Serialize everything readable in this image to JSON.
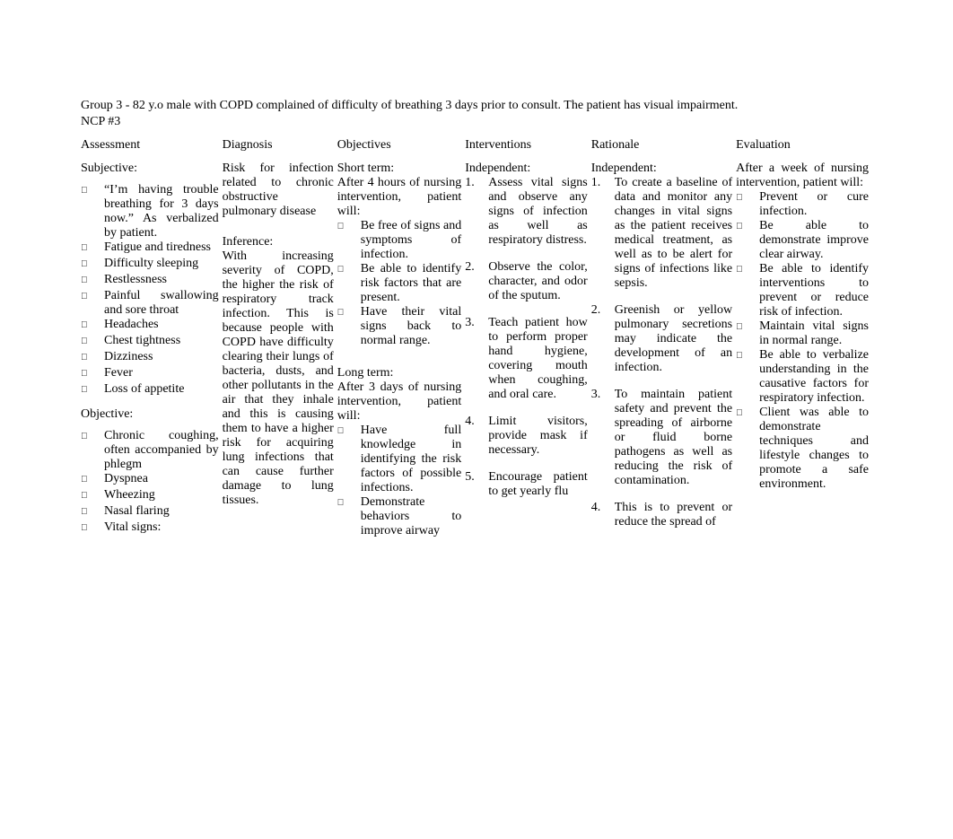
{
  "header": {
    "line1": "Group 3 - 82 y.o male with COPD complained of difficulty of breathing 3 days prior to consult. The patient has visual impairment.",
    "line2": "NCP #3"
  },
  "columns": {
    "assessment": "Assessment",
    "diagnosis": "Diagnosis",
    "objectives": "Objectives",
    "interventions": "Interventions",
    "rationale": "Rationale",
    "evaluation": "Evaluation"
  },
  "assessment": {
    "subjective_label": "Subjective:",
    "subjective_items": [
      "“I’m having trouble breathing for 3 days now.” As verbalized by patient.",
      "Fatigue and tiredness",
      "Difficulty sleeping",
      "Restlessness",
      "Painful swallowing and sore throat",
      "Headaches",
      "Chest tightness",
      "Dizziness",
      "Fever",
      "Loss of appetite"
    ],
    "objective_label": "Objective:",
    "objective_items": [
      "Chronic coughing, often accompanied by phlegm",
      "Dyspnea",
      "Wheezing",
      "Nasal flaring",
      "Vital signs:"
    ]
  },
  "diagnosis": {
    "text1": "Risk for infection related to chronic obstructive pulmonary disease",
    "inference_label": "Inference:",
    "inference_text": "With increasing severity of COPD, the higher the risk of respiratory track infection. This is because people with COPD have difficulty clearing their lungs of bacteria, dusts, and other pollutants in the air that they inhale and this is causing them to have a higher risk for acquiring lung infections that can cause further damage to lung tissues."
  },
  "objectives": {
    "short_label": "Short term:",
    "short_intro": "After 4 hours of nursing intervention, patient will:",
    "short_items": [
      "Be free of signs and symptoms of infection.",
      "Be able to identify risk factors that are present.",
      "Have their vital signs back to normal range."
    ],
    "long_label": "Long term:",
    "long_intro": "After 3 days of nursing intervention, patient will:",
    "long_items": [
      "Have full knowledge in identifying the risk factors of possible infections.",
      "Demonstrate behaviors to improve airway"
    ]
  },
  "interventions": {
    "indep_label": "Independent:",
    "items": [
      "Assess vital signs and observe any signs of infection as well as respiratory distress.",
      "Observe the color, character, and odor of the sputum.",
      "Teach patient how to perform proper hand hygiene, covering mouth when coughing, and oral care.",
      "Limit visitors, provide mask if necessary.",
      "Encourage patient to get yearly flu"
    ]
  },
  "rationale": {
    "indep_label": "Independent:",
    "items": [
      "To create a baseline of data and monitor any changes in vital signs as the patient receives medical treatment, as well as to be alert for signs of infections like sepsis.",
      "Greenish or yellow pulmonary secretions may indicate the development of an infection.",
      "To maintain patient safety and prevent the spreading of airborne or fluid borne pathogens as well as reducing the risk of contamination.",
      "This is to prevent or reduce the spread of"
    ]
  },
  "evaluation": {
    "intro": "After a week of nursing intervention, patient will:",
    "items": [
      "Prevent or cure infection.",
      "Be able to demonstrate improve clear airway.",
      "Be able to identify interventions to prevent or reduce risk of infection.",
      "Maintain vital signs in normal range.",
      "Be able to verbalize understanding in the causative factors for respiratory infection.",
      "Client was able to demonstrate techniques and lifestyle changes to promote a safe environment."
    ]
  },
  "bullet_glyph": "",
  "style": {
    "font_family": "Times New Roman",
    "font_size_pt": 11,
    "text_color": "#000000",
    "background_color": "#ffffff"
  }
}
